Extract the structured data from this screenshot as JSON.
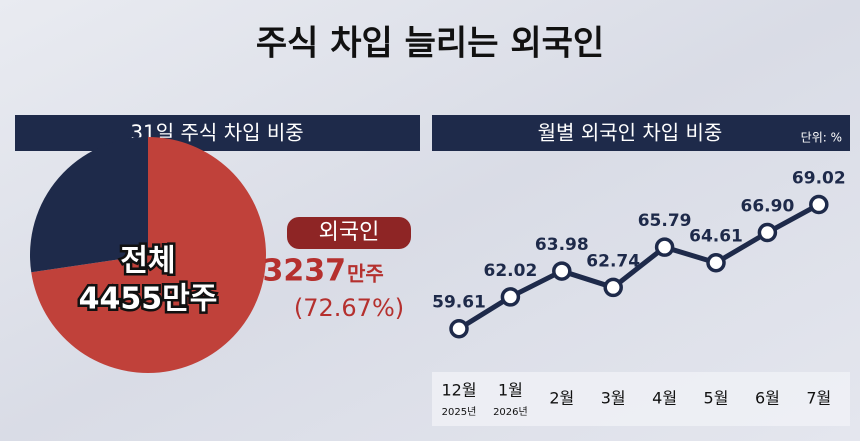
{
  "title": "주식 차입 늘리는 외국인",
  "chart_data": [
    {
      "type": "pie",
      "title": "31일 주식 차입 비중",
      "center_label": "전체",
      "center_value": "4455만주",
      "categories": [
        "외국인",
        null
      ],
      "values": [
        72.67,
        27.33
      ],
      "value_labels": [
        "(72.67%)",
        null
      ],
      "colors": [
        "#c0413a",
        "#1e2a4a"
      ],
      "annotation_count": "3237",
      "annotation_unit": "만주"
    },
    {
      "type": "line",
      "title": "월별 외국인 차입 비중",
      "unit_label": "단위: %",
      "categories": [
        "12월",
        "1월",
        "2월",
        "3월",
        "4월",
        "5월",
        "6월",
        "7월"
      ],
      "category_sublabels": [
        "2025년",
        "2026년",
        null,
        null,
        null,
        null,
        null,
        null
      ],
      "series": [
        {
          "name": null,
          "color": "#1e2a4a",
          "values": [
            59.61,
            62.02,
            63.98,
            62.74,
            65.79,
            64.61,
            66.9,
            69.02
          ],
          "value_labels": [
            "59.61",
            "62.02",
            "63.98",
            "62.74",
            "65.79",
            "64.61",
            "66.90",
            "69.02"
          ]
        }
      ],
      "ylim": [
        58,
        70.5
      ]
    }
  ]
}
